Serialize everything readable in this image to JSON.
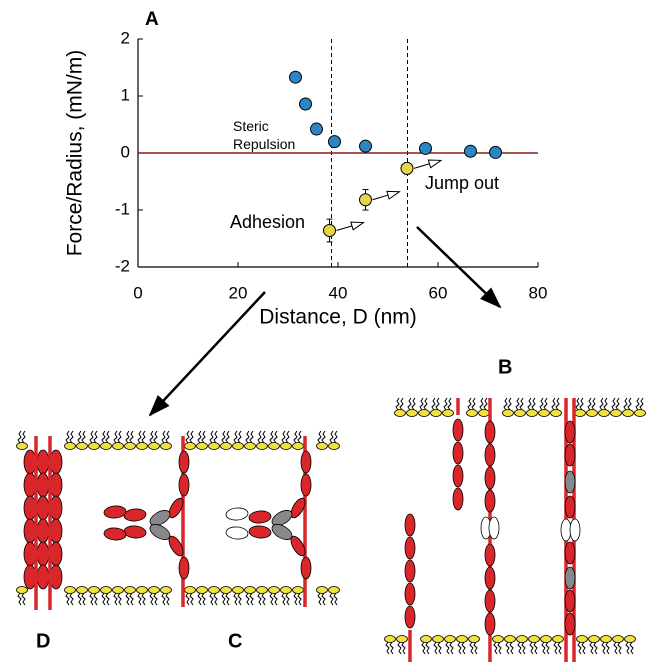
{
  "chart_data": {
    "type": "scatter",
    "title": "A",
    "xlabel": "Distance, D (nm)",
    "ylabel": "Force/Radius, (mN/m)",
    "xlim": [
      0,
      80
    ],
    "ylim": [
      -2,
      2
    ],
    "xticks": [
      0,
      20,
      40,
      60,
      80
    ],
    "yticks": [
      2,
      1,
      0,
      -1,
      -2
    ],
    "zero_line_color": "#8b1c1c",
    "vlines": [
      38.7,
      53.9
    ],
    "series": [
      {
        "color": "#2b86c6",
        "x": [
          31.5,
          33.5,
          35.7,
          39.3,
          45.5,
          57.5,
          66.5,
          71.5
        ],
        "values": [
          1.33,
          0.86,
          0.42,
          0.2,
          0.12,
          0.08,
          0.03,
          0.01
        ],
        "errors": [
          0.06,
          0.05,
          0.06,
          0.06,
          0.05,
          0.05,
          0.05,
          0.05
        ]
      },
      {
        "color": "#e6d44a",
        "x": [
          38.3,
          45.5,
          53.8
        ],
        "values": [
          -1.36,
          -0.82,
          -0.27
        ],
        "errors": [
          0.2,
          0.18,
          0.1
        ]
      }
    ],
    "annotations": [
      "Steric Repulsion",
      "Jump out",
      "Adhesion"
    ]
  },
  "diagram": {
    "labels": [
      "B",
      "C",
      "D"
    ]
  }
}
